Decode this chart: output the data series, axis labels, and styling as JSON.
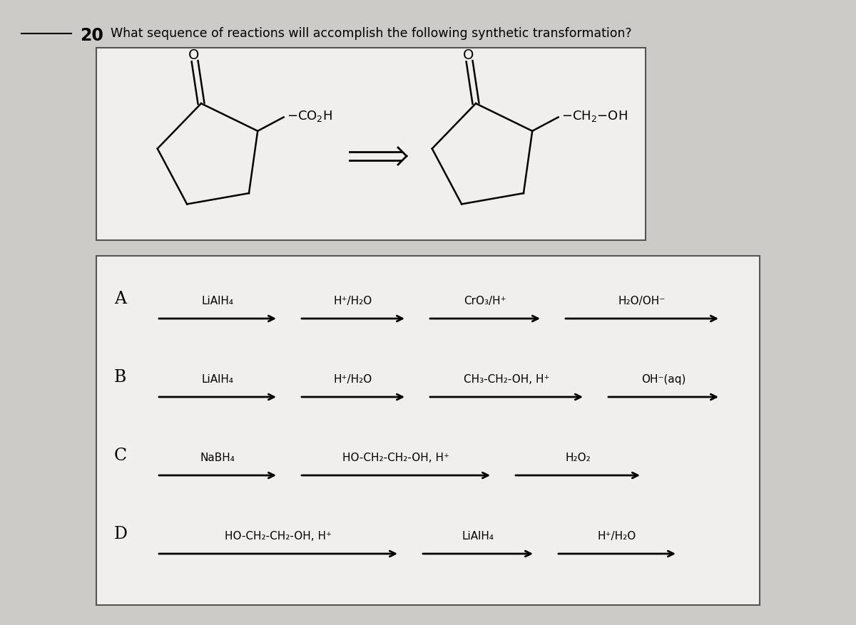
{
  "background_color": "#cccbc8",
  "question_number": "20",
  "question_text": "What sequence of reactions will accomplish the following synthetic transformation?",
  "options": {
    "A": {
      "steps": [
        "LiAlH₄",
        "H⁺/H₂O",
        "CrO₃/H⁺",
        "H₂O/OH⁻"
      ]
    },
    "B": {
      "steps": [
        "LiAlH₄",
        "H⁺/H₂O",
        "CH₃-CH₂-OH, H⁺",
        "OH⁻(aq)"
      ]
    },
    "C": {
      "steps": [
        "NaBH₄",
        "HO-CH₂-CH₂-OH, H⁺",
        "H₂O₂"
      ]
    },
    "D": {
      "steps": [
        "HO-CH₂-CH₂-OH, H⁺",
        "LiAlH₄",
        "H⁺/H₂O"
      ]
    }
  },
  "top_box_bg": "#f0efed",
  "options_box_bg": "#f0efed",
  "arrow_color": "#000000",
  "text_color": "#000000",
  "font_size_question": 12.5,
  "font_size_option_label": 17,
  "font_size_step": 11,
  "font_size_number": 17,
  "font_size_mol_label": 12
}
